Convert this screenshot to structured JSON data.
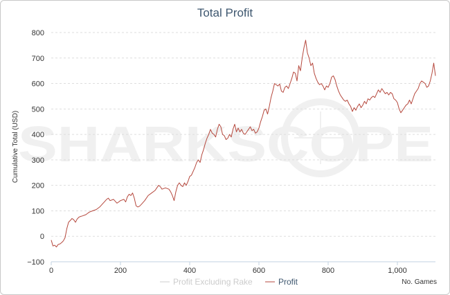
{
  "chart_data": {
    "type": "line",
    "title": "Total Profit",
    "xlabel": "No. Games",
    "ylabel": "Cumulative Total (USD)",
    "xlim": [
      0,
      1110
    ],
    "ylim": [
      -100,
      800
    ],
    "x_ticks": [
      0,
      200,
      400,
      600,
      800,
      1000
    ],
    "x_tick_labels": [
      "0",
      "200",
      "400",
      "600",
      "800",
      "1,000"
    ],
    "y_ticks": [
      -100,
      0,
      100,
      200,
      300,
      400,
      500,
      600,
      700,
      800
    ],
    "y_tick_labels": [
      "−100",
      "0",
      "100",
      "200",
      "300",
      "400",
      "500",
      "600",
      "700",
      "800"
    ],
    "grid": true,
    "legend_position": "bottom-center",
    "watermark": "SHARKSCOPE",
    "series": [
      {
        "name": "Profit Excluding Rake",
        "color": "#cccccc",
        "visible": false,
        "points": []
      },
      {
        "name": "Profit",
        "color": "#b5473c",
        "visible": true,
        "points": [
          [
            0,
            -15
          ],
          [
            5,
            -38
          ],
          [
            10,
            -35
          ],
          [
            15,
            -42
          ],
          [
            20,
            -32
          ],
          [
            25,
            -30
          ],
          [
            30,
            -25
          ],
          [
            35,
            -18
          ],
          [
            40,
            -5
          ],
          [
            45,
            30
          ],
          [
            50,
            55
          ],
          [
            55,
            62
          ],
          [
            60,
            70
          ],
          [
            65,
            65
          ],
          [
            70,
            55
          ],
          [
            75,
            68
          ],
          [
            80,
            75
          ],
          [
            85,
            78
          ],
          [
            90,
            80
          ],
          [
            100,
            85
          ],
          [
            110,
            95
          ],
          [
            120,
            100
          ],
          [
            130,
            105
          ],
          [
            140,
            115
          ],
          [
            150,
            130
          ],
          [
            160,
            145
          ],
          [
            165,
            150
          ],
          [
            170,
            140
          ],
          [
            180,
            145
          ],
          [
            190,
            130
          ],
          [
            195,
            135
          ],
          [
            200,
            140
          ],
          [
            210,
            145
          ],
          [
            215,
            135
          ],
          [
            220,
            155
          ],
          [
            225,
            165
          ],
          [
            230,
            160
          ],
          [
            235,
            170
          ],
          [
            240,
            150
          ],
          [
            245,
            120
          ],
          [
            250,
            115
          ],
          [
            255,
            118
          ],
          [
            260,
            125
          ],
          [
            270,
            140
          ],
          [
            280,
            160
          ],
          [
            290,
            170
          ],
          [
            300,
            180
          ],
          [
            305,
            190
          ],
          [
            310,
            200
          ],
          [
            315,
            195
          ],
          [
            320,
            185
          ],
          [
            330,
            190
          ],
          [
            340,
            185
          ],
          [
            345,
            175
          ],
          [
            350,
            160
          ],
          [
            355,
            140
          ],
          [
            360,
            175
          ],
          [
            365,
            200
          ],
          [
            370,
            210
          ],
          [
            375,
            200
          ],
          [
            380,
            195
          ],
          [
            385,
            210
          ],
          [
            390,
            200
          ],
          [
            395,
            215
          ],
          [
            400,
            235
          ],
          [
            405,
            240
          ],
          [
            410,
            255
          ],
          [
            415,
            270
          ],
          [
            420,
            290
          ],
          [
            425,
            300
          ],
          [
            430,
            290
          ],
          [
            435,
            320
          ],
          [
            440,
            340
          ],
          [
            445,
            365
          ],
          [
            450,
            385
          ],
          [
            455,
            400
          ],
          [
            460,
            420
          ],
          [
            465,
            405
          ],
          [
            470,
            400
          ],
          [
            475,
            390
          ],
          [
            480,
            420
          ],
          [
            485,
            440
          ],
          [
            490,
            430
          ],
          [
            495,
            400
          ],
          [
            500,
            395
          ],
          [
            505,
            380
          ],
          [
            510,
            385
          ],
          [
            515,
            400
          ],
          [
            520,
            390
          ],
          [
            525,
            420
          ],
          [
            530,
            440
          ],
          [
            535,
            410
          ],
          [
            540,
            425
          ],
          [
            545,
            410
          ],
          [
            550,
            420
          ],
          [
            555,
            405
          ],
          [
            560,
            400
          ],
          [
            565,
            410
          ],
          [
            570,
            420
          ],
          [
            575,
            430
          ],
          [
            580,
            415
          ],
          [
            585,
            420
          ],
          [
            590,
            405
          ],
          [
            595,
            410
          ],
          [
            600,
            425
          ],
          [
            605,
            450
          ],
          [
            610,
            470
          ],
          [
            615,
            495
          ],
          [
            620,
            500
          ],
          [
            625,
            480
          ],
          [
            630,
            510
          ],
          [
            635,
            545
          ],
          [
            640,
            570
          ],
          [
            645,
            600
          ],
          [
            650,
            595
          ],
          [
            655,
            590
          ],
          [
            660,
            598
          ],
          [
            665,
            570
          ],
          [
            670,
            565
          ],
          [
            675,
            585
          ],
          [
            680,
            590
          ],
          [
            685,
            580
          ],
          [
            690,
            600
          ],
          [
            695,
            620
          ],
          [
            700,
            645
          ],
          [
            705,
            640
          ],
          [
            710,
            610
          ],
          [
            715,
            670
          ],
          [
            720,
            650
          ],
          [
            725,
            700
          ],
          [
            730,
            740
          ],
          [
            735,
            770
          ],
          [
            740,
            720
          ],
          [
            745,
            700
          ],
          [
            750,
            670
          ],
          [
            755,
            680
          ],
          [
            760,
            640
          ],
          [
            765,
            620
          ],
          [
            770,
            605
          ],
          [
            775,
            595
          ],
          [
            780,
            600
          ],
          [
            785,
            590
          ],
          [
            790,
            575
          ],
          [
            795,
            590
          ],
          [
            800,
            585
          ],
          [
            805,
            600
          ],
          [
            810,
            625
          ],
          [
            815,
            630
          ],
          [
            820,
            615
          ],
          [
            825,
            590
          ],
          [
            830,
            570
          ],
          [
            835,
            555
          ],
          [
            840,
            545
          ],
          [
            845,
            535
          ],
          [
            850,
            530
          ],
          [
            855,
            535
          ],
          [
            860,
            520
          ],
          [
            865,
            510
          ],
          [
            870,
            490
          ],
          [
            875,
            505
          ],
          [
            880,
            495
          ],
          [
            885,
            510
          ],
          [
            890,
            520
          ],
          [
            895,
            505
          ],
          [
            900,
            515
          ],
          [
            905,
            530
          ],
          [
            910,
            520
          ],
          [
            915,
            540
          ],
          [
            920,
            535
          ],
          [
            925,
            545
          ],
          [
            930,
            550
          ],
          [
            935,
            545
          ],
          [
            940,
            560
          ],
          [
            945,
            575
          ],
          [
            950,
            565
          ],
          [
            955,
            580
          ],
          [
            960,
            570
          ],
          [
            965,
            560
          ],
          [
            970,
            565
          ],
          [
            975,
            555
          ],
          [
            980,
            565
          ],
          [
            985,
            560
          ],
          [
            990,
            540
          ],
          [
            995,
            535
          ],
          [
            1000,
            525
          ],
          [
            1005,
            500
          ],
          [
            1010,
            485
          ],
          [
            1015,
            495
          ],
          [
            1020,
            505
          ],
          [
            1025,
            515
          ],
          [
            1030,
            520
          ],
          [
            1035,
            535
          ],
          [
            1040,
            520
          ],
          [
            1045,
            540
          ],
          [
            1050,
            560
          ],
          [
            1055,
            570
          ],
          [
            1060,
            580
          ],
          [
            1065,
            600
          ],
          [
            1070,
            610
          ],
          [
            1075,
            605
          ],
          [
            1080,
            600
          ],
          [
            1085,
            585
          ],
          [
            1090,
            590
          ],
          [
            1095,
            610
          ],
          [
            1100,
            640
          ],
          [
            1105,
            680
          ],
          [
            1110,
            630
          ]
        ]
      }
    ]
  }
}
